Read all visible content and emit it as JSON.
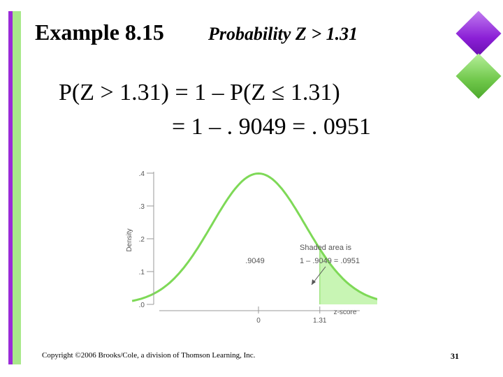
{
  "slide": {
    "title": "Example 8.15",
    "subtitle": "Probability Z > 1.31",
    "equation_line1": "P(Z > 1.31) = 1 – P(Z ≤ 1.31)",
    "equation_line2": "= 1 – . 9049 = . 0951",
    "copyright": "Copyright ©2006 Brooks/Cole, a division of Thomson Learning, Inc.",
    "page_number": "31"
  },
  "colors": {
    "bar_purple": "#9a2bd8",
    "bar_green": "#a8e88a",
    "curve": "#7ed957",
    "shade": "#c8f5b4"
  },
  "chart_data": {
    "type": "area",
    "ylabel": "Density",
    "xlabel": "z-score",
    "ylim": [
      0,
      0.4
    ],
    "yticks": [
      ".4",
      ".3",
      ".2",
      ".1",
      ".0"
    ],
    "ytick_values": [
      0.4,
      0.3,
      0.2,
      0.1,
      0.0
    ],
    "xticks": [
      "0",
      "1.31"
    ],
    "xtick_values": [
      0,
      1.31
    ],
    "xrange": [
      -2.7,
      2.7
    ],
    "shaded_from": 1.31,
    "left_area_label": ".9049",
    "annotation_line1": "Shaded area is",
    "annotation_line2": "1 – .9049 = .0951",
    "grid": false
  }
}
